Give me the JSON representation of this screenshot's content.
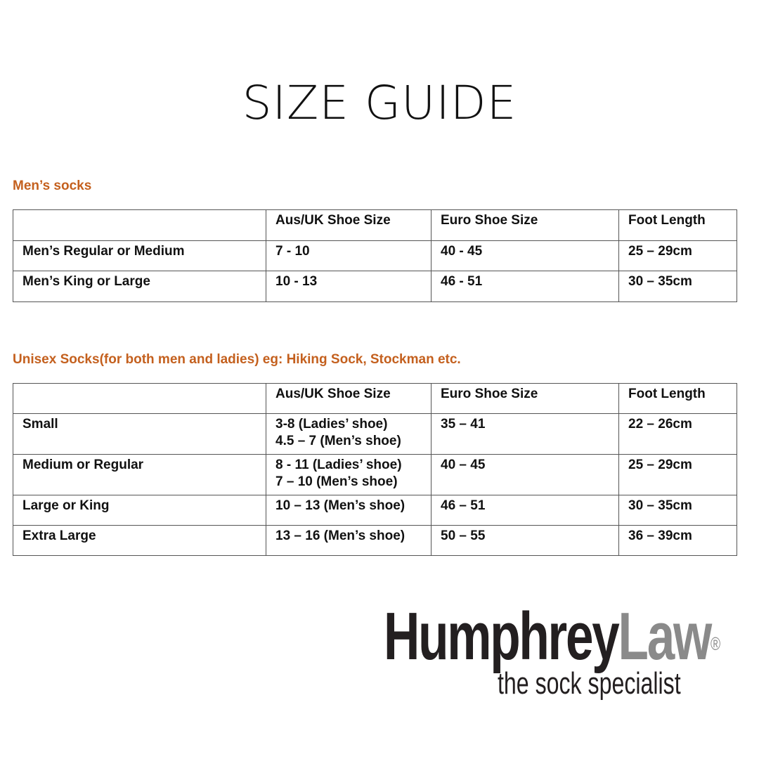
{
  "title": "SIZE GUIDE",
  "mens": {
    "heading": "Men’s socks",
    "columns": [
      "",
      "Aus/UK Shoe Size",
      "Euro Shoe Size",
      "Foot Length"
    ],
    "rows": [
      [
        "Men’s Regular or Medium",
        "7 - 10",
        "40 - 45",
        "25 – 29cm"
      ],
      [
        "Men’s King or Large",
        "10 - 13",
        "46 - 51",
        "30 – 35cm"
      ]
    ]
  },
  "unisex": {
    "heading": "Unisex Socks(for both men and ladies) eg: Hiking Sock, Stockman etc.",
    "columns": [
      "",
      "Aus/UK Shoe Size",
      "Euro Shoe Size",
      "Foot Length"
    ],
    "rows": [
      [
        "Small",
        "3-8 (Ladies’ shoe)\n4.5 – 7 (Men’s shoe)",
        "35 – 41",
        "22 – 26cm"
      ],
      [
        "Medium or Regular",
        "8 - 11 (Ladies’ shoe)\n7 – 10 (Men’s shoe)",
        "40 – 45",
        "25 – 29cm"
      ],
      [
        "Large or King",
        "10 – 13 (Men’s shoe)",
        "46 – 51",
        "30 – 35cm"
      ],
      [
        "Extra Large",
        "13 – 16 (Men’s shoe)",
        "50 – 55",
        "36 – 39cm"
      ]
    ]
  },
  "logo": {
    "brand_dark": "Humphrey",
    "brand_light": "Law",
    "registered": "®",
    "tagline": "the sock specialist"
  },
  "colors": {
    "heading": "#c4601e",
    "logo_dark": "#231f20",
    "logo_light": "#8a8a8a"
  }
}
